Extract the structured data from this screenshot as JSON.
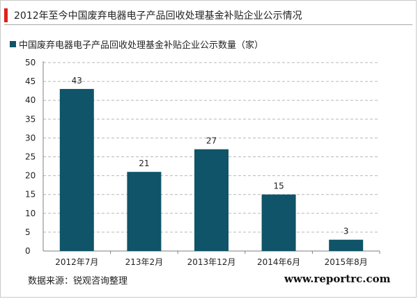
{
  "header": {
    "title": "2012年至今中国废弃电器电子产品回收处理基金补贴企业公示情况"
  },
  "colors": {
    "accent": "#e0201b",
    "bar": "#0f5468",
    "grid": "#b7b7b7"
  },
  "footer": {
    "source": "数据来源：锐观咨询整理",
    "watermark": "www.reportrc.com"
  },
  "chart_data": {
    "type": "bar",
    "title": "",
    "categories": [
      "2012年7月",
      "213年2月",
      "2013年12月",
      "2014年6月",
      "2015年8月"
    ],
    "series": [
      {
        "name": "中国废弃电器电子产品回收处理基金补贴企业公示数量（家）",
        "values": [
          43,
          21,
          27,
          15,
          3
        ]
      }
    ],
    "data_labels": [
      "43",
      "21",
      "27",
      "15",
      "3"
    ],
    "ylim": [
      0,
      50
    ],
    "yticks": [
      0,
      5,
      10,
      15,
      20,
      25,
      30,
      35,
      40,
      45,
      50
    ],
    "grid": true,
    "legend_position": "top-left",
    "xlabel": "",
    "ylabel": ""
  }
}
